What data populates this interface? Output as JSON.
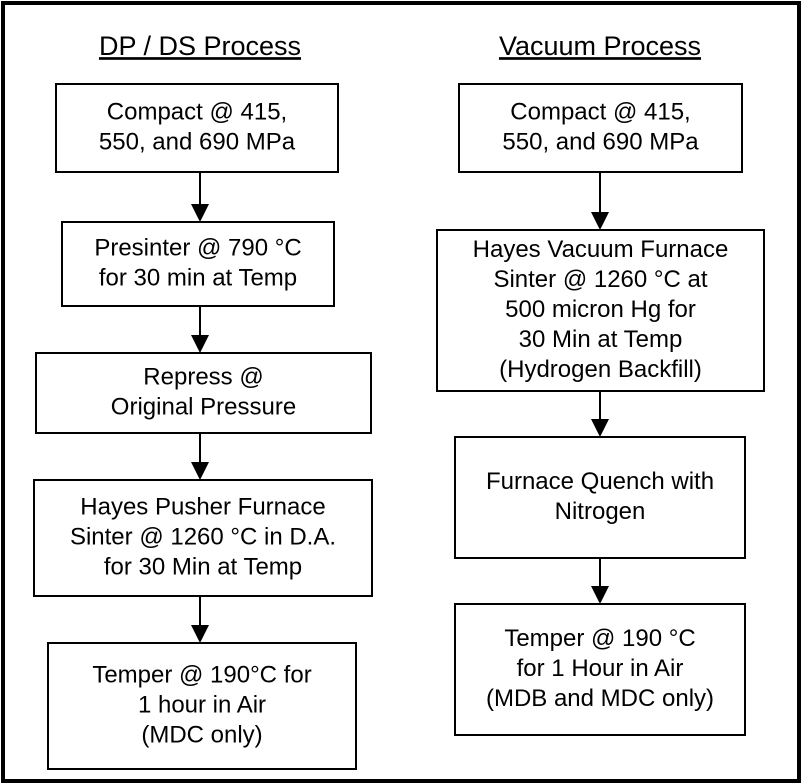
{
  "columns": [
    {
      "title": "DP / DS Process",
      "steps": [
        {
          "lines": [
            "Compact @ 415,",
            "550, and 690 MPa"
          ]
        },
        {
          "lines": [
            "Presinter @ 790 °C",
            "for 30 min at Temp"
          ]
        },
        {
          "lines": [
            "Repress @",
            "Original Pressure"
          ]
        },
        {
          "lines": [
            "Hayes Pusher Furnace",
            "Sinter @ 1260 °C in D.A.",
            "for 30 Min at Temp"
          ]
        },
        {
          "lines": [
            "Temper  @ 190°C for",
            "1 hour in Air",
            "(MDC only)"
          ]
        }
      ]
    },
    {
      "title": "Vacuum Process",
      "steps": [
        {
          "lines": [
            "Compact @ 415,",
            "550, and 690 MPa"
          ]
        },
        {
          "lines": [
            "Hayes Vacuum Furnace",
            "Sinter @ 1260 °C at",
            "500 micron Hg for",
            "30 Min at Temp",
            "(Hydrogen Backfill)"
          ]
        },
        {
          "lines": [
            "Furnace Quench with",
            "Nitrogen"
          ]
        },
        {
          "lines": [
            "Temper @ 190 °C",
            "for 1 Hour in Air",
            "(MDB and MDC only)"
          ]
        }
      ]
    }
  ]
}
